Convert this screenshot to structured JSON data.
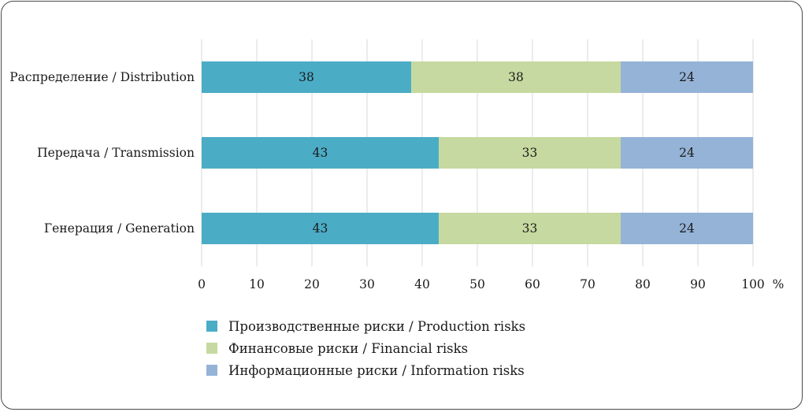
{
  "chart_data": {
    "type": "bar",
    "orientation": "horizontal",
    "stacked": true,
    "categories": [
      "Распределение / Distribution",
      "Передача / Transmission",
      "Генерация / Generation"
    ],
    "series": [
      {
        "name": "Производственные риски / Production risks",
        "color": "#4bacc6",
        "values": [
          38,
          43,
          43
        ]
      },
      {
        "name": "Финансовые риски / Financial risks",
        "color": "#c6d9a0",
        "values": [
          38,
          33,
          33
        ]
      },
      {
        "name": "Информационные риски / Information risks",
        "color": "#95b3d7",
        "values": [
          24,
          24,
          24
        ]
      }
    ],
    "xticks": [
      "0",
      "10",
      "20",
      "30",
      "40",
      "50",
      "60",
      "70",
      "80",
      "90",
      "100"
    ],
    "xlim": [
      0,
      100
    ],
    "x_unit": "%",
    "grid": "vertical",
    "legend_position": "bottom",
    "title": ""
  }
}
